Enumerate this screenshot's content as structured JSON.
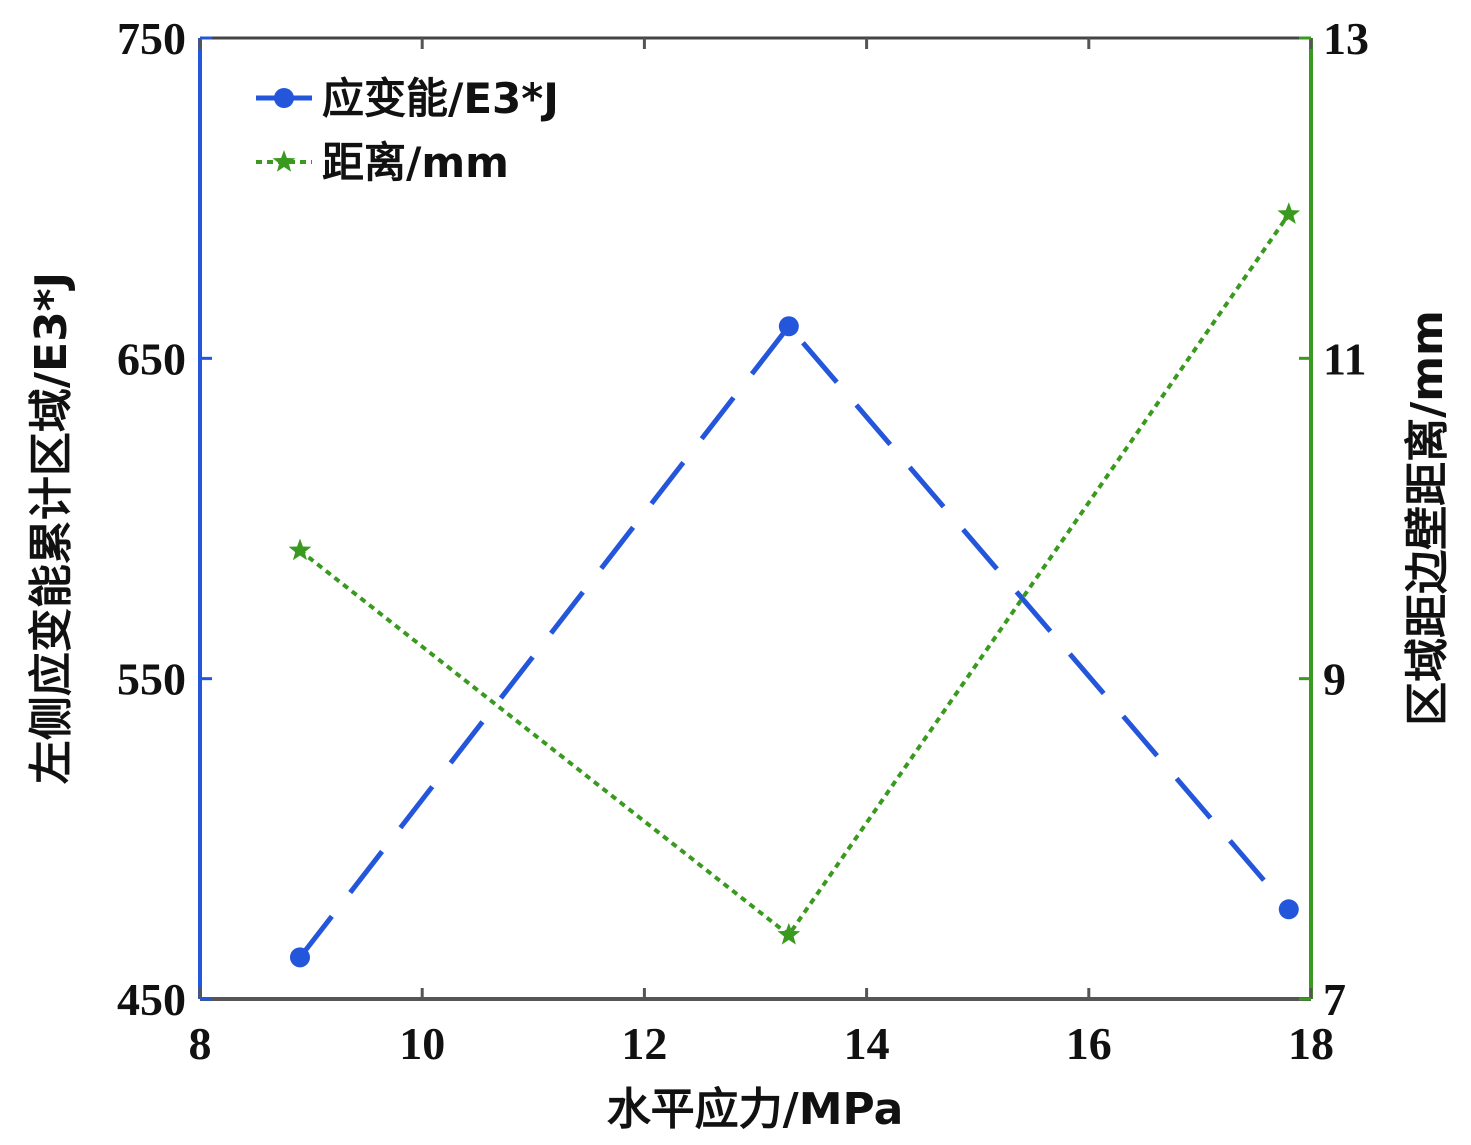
{
  "chart_data": {
    "type": "line",
    "xlabel": "水平应力/MPa",
    "ylabel_left": "左侧应变能累计区域/E3*J",
    "ylabel_right": "区域距边壁距离/mm",
    "xlim": [
      8,
      18
    ],
    "ylim_left": [
      450,
      750
    ],
    "ylim_right": [
      7,
      13
    ],
    "x_ticks": [
      "8",
      "10",
      "12",
      "14",
      "16",
      "18"
    ],
    "y_left_ticks": [
      "450",
      "550",
      "650",
      "750"
    ],
    "y_right_ticks": [
      "7",
      "9",
      "11",
      "13"
    ],
    "legend_position": "top-left",
    "grid": false,
    "series": [
      {
        "name": "应变能/E3*J",
        "axis": "left",
        "color": "#2456dc",
        "line_style": "long-dash",
        "marker": "circle",
        "x": [
          8.9,
          13.3,
          17.8
        ],
        "y": [
          463,
          660,
          478
        ]
      },
      {
        "name": "距离/mm",
        "axis": "right",
        "color": "#3a9a1f",
        "line_style": "dotted",
        "marker": "star",
        "x": [
          8.9,
          13.3,
          17.8
        ],
        "y": [
          9.8,
          7.4,
          11.9
        ]
      }
    ],
    "colors": {
      "left_axis": "#2456dc",
      "right_axis": "#3a9a1f",
      "bottom_axis": "#555555"
    }
  }
}
